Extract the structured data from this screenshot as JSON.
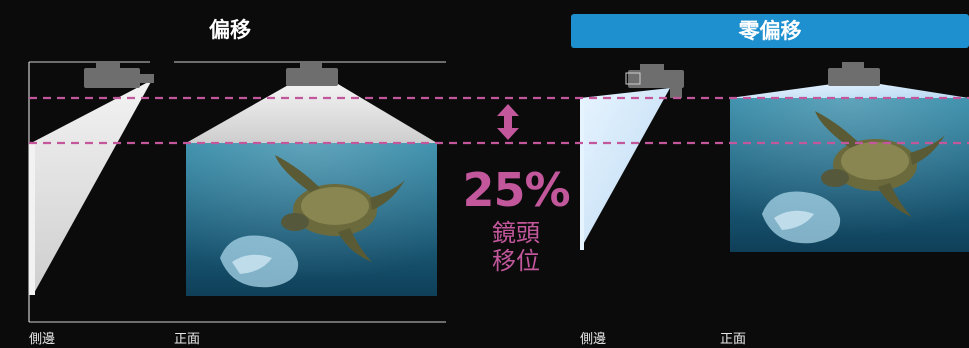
{
  "left_panel": {
    "title": "偏移",
    "side_caption": "側邊",
    "front_caption": "正面"
  },
  "right_panel": {
    "title": "零偏移",
    "side_caption": "側邊",
    "front_caption": "正面"
  },
  "shift_label": {
    "value": "25%",
    "line1": "鏡頭",
    "line2": "移位"
  },
  "colors": {
    "accent_blue": "#1e8fcf",
    "dashed_line": "#c2579b",
    "label_pink": "#c2579b",
    "projector": "#6e6e6e",
    "water": "#1f6f8f"
  },
  "icons": [
    "projector-icon",
    "double-arrow-icon",
    "turtle-image"
  ]
}
